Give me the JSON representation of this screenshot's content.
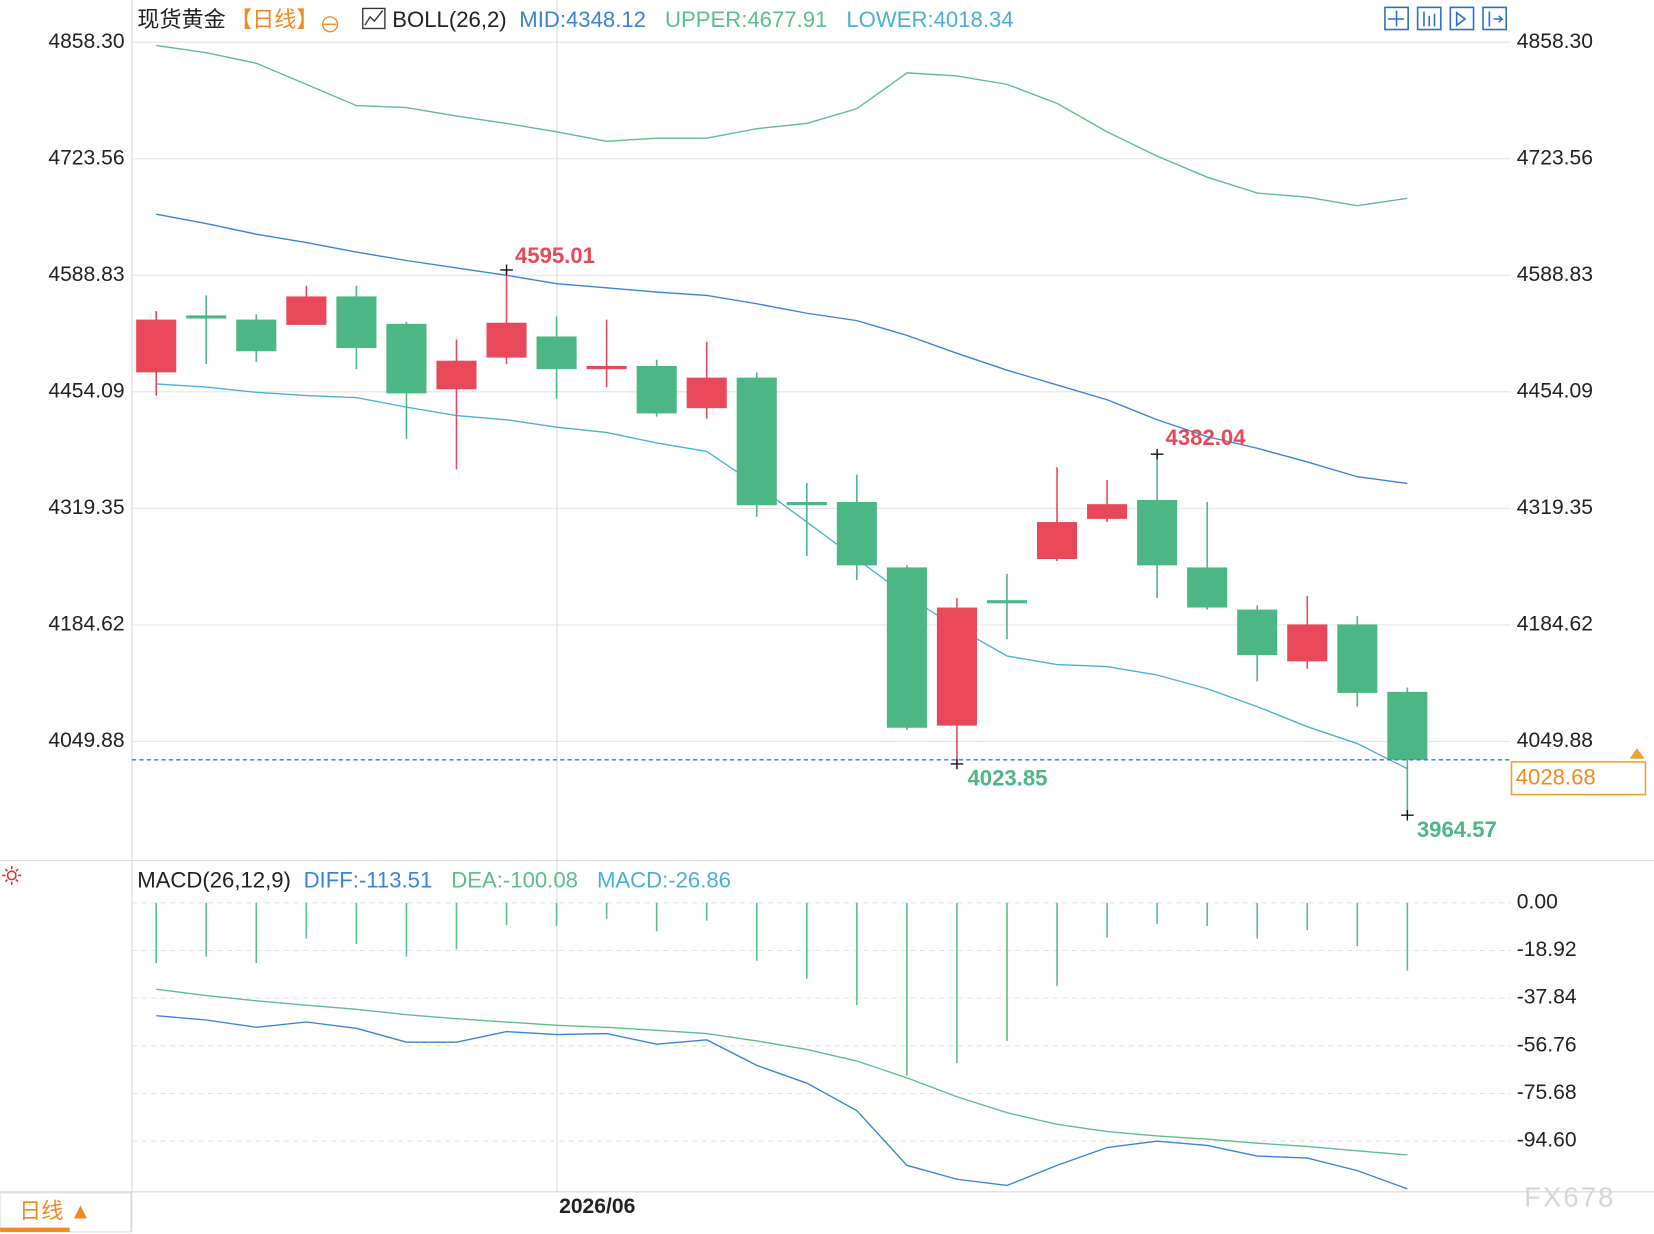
{
  "chart_data": [
    {
      "type": "candlestick",
      "title": "现货黄金",
      "period": "【日线】",
      "indicator": "BOLL(26,2)",
      "categories": [
        null,
        null,
        null,
        null,
        null,
        null,
        null,
        null,
        "2026/06",
        null,
        null,
        null,
        null,
        null,
        null,
        null,
        null,
        null,
        null,
        null,
        null,
        null,
        null,
        null,
        null,
        null
      ],
      "open": [
        4476.6,
        4542.5,
        4537.6,
        4531.5,
        4564.4,
        4532.7,
        4457.1,
        4493.7,
        4518.1,
        4480.3,
        4484.0,
        4435.2,
        4470.5,
        4326.7,
        4326.7,
        4251.1,
        4068.2,
        4213.2,
        4260.8,
        4307.2,
        4329.1,
        4251.1,
        4202.3,
        4142.5,
        4185.2,
        4107.2
      ],
      "high": [
        4547.4,
        4565.6,
        4543.7,
        4576.6,
        4576.6,
        4535.2,
        4514.4,
        4595.01,
        4541.3,
        4537.6,
        4491.3,
        4512.0,
        4476.6,
        4348.6,
        4358.4,
        4253.5,
        4215.7,
        4243.7,
        4366.9,
        4352.3,
        4382.04,
        4326.7,
        4207.2,
        4218.1,
        4195.0,
        4112.2
      ],
      "low": [
        4449.8,
        4486.4,
        4488.8,
        4531.5,
        4480.3,
        4399.8,
        4364.5,
        4486.4,
        4446.2,
        4459.6,
        4425.4,
        4423.0,
        4309.6,
        4264.5,
        4236.5,
        4063.3,
        4023.85,
        4168.1,
        4258.4,
        4303.5,
        4215.7,
        4202.3,
        4119.4,
        4134.0,
        4090.1,
        3964.57
      ],
      "close": [
        4537.6,
        4538.8,
        4501.0,
        4564.4,
        4504.7,
        4452.3,
        4490.1,
        4534.0,
        4480.3,
        4484.0,
        4429.1,
        4470.5,
        4323.0,
        4323.0,
        4253.5,
        4065.7,
        4204.7,
        4209.6,
        4303.5,
        4324.2,
        4253.5,
        4204.7,
        4149.8,
        4185.2,
        4106.0,
        4028.68
      ],
      "up_color": "#e8495a",
      "down_color": "#4cb784",
      "series": [
        {
          "name": "MID:4348.12",
          "color": "#3a83d8",
          "values": [
            4659.5,
            4648.6,
            4636.4,
            4626.6,
            4615.7,
            4605.9,
            4597.4,
            4588.9,
            4579.1,
            4574.3,
            4569.4,
            4565.6,
            4555.9,
            4544.9,
            4536.4,
            4519.3,
            4498.6,
            4479.1,
            4462.0,
            4444.9,
            4421.8,
            4402.3,
            4388.8,
            4373.0,
            4355.9,
            4348.12
          ]
        },
        {
          "name": "UPPER:4677.91",
          "color": "#5cbe8a",
          "values": [
            4854.6,
            4846.1,
            4833.9,
            4809.5,
            4785.1,
            4782.7,
            4773.0,
            4764.4,
            4754.7,
            4743.7,
            4747.3,
            4747.3,
            4758.3,
            4764.4,
            4781.5,
            4822.9,
            4819.3,
            4809.5,
            4787.6,
            4754.7,
            4726.6,
            4702.2,
            4683.9,
            4679.1,
            4669.3,
            4677.91
          ]
        },
        {
          "name": "LOWER:4018.34",
          "color": "#4bb0d8",
          "values": [
            4463.2,
            4459.6,
            4453.5,
            4449.8,
            4447.4,
            4436.4,
            4426.7,
            4421.8,
            4413.3,
            4407.2,
            4395.0,
            4385.2,
            4346.2,
            4303.5,
            4260.8,
            4218.1,
            4181.6,
            4148.6,
            4138.8,
            4136.4,
            4126.7,
            4110.8,
            4090.1,
            4066.9,
            4047.4,
            4018.34
          ]
        }
      ],
      "ylim": [
        3913.3,
        4907.1
      ],
      "yticks": [
        {
          "value": 4858.3,
          "label": "4858.30"
        },
        4723.56,
        4588.83,
        4454.09,
        4319.35,
        4184.62,
        4049.88
      ],
      "grid": true
    },
    {
      "type": "macd",
      "indicator": "MACD(26,12,9)",
      "series": [
        {
          "name": "DIFF:-113.51",
          "color": "#3a83d8",
          "type": "line",
          "values": [
            -44.8,
            -46.5,
            -49.4,
            -47.3,
            -49.8,
            -55.3,
            -55.3,
            -51.1,
            -52.3,
            -51.9,
            -56.1,
            -54.4,
            -64.5,
            -71.6,
            -82.5,
            -104.2,
            -109.7,
            -112.2,
            -104.2,
            -97.1,
            -94.6,
            -96.3,
            -100.5,
            -101.3,
            -106.3,
            -113.51
          ]
        },
        {
          "name": "DEA:-100.08",
          "color": "#5cbe8a",
          "type": "line",
          "values": [
            -34.3,
            -36.8,
            -38.9,
            -40.6,
            -42.3,
            -44.4,
            -46.0,
            -47.3,
            -48.6,
            -49.4,
            -50.6,
            -51.9,
            -54.8,
            -58.2,
            -62.8,
            -69.5,
            -77.0,
            -83.3,
            -87.9,
            -90.8,
            -92.5,
            -93.8,
            -95.4,
            -96.7,
            -98.4,
            -100.08
          ]
        },
        {
          "name": "MACD:-26.86",
          "color": "#4bb0d8",
          "type": "bar",
          "up_color": "#e8495a",
          "down_color": "#5cbe8a",
          "values": [
            -23.9,
            -21.3,
            -23.9,
            -14.2,
            -16.3,
            -21.3,
            -18.4,
            -8.8,
            -9.2,
            -6.3,
            -11.3,
            -7.1,
            -23.0,
            -30.1,
            -40.6,
            -68.6,
            -63.6,
            -54.8,
            -33.1,
            -13.8,
            -8.4,
            -9.2,
            -14.2,
            -10.9,
            -17.2,
            -26.86
          ]
        }
      ],
      "ylim": [
        -114.7,
        15.9
      ],
      "yticks": [
        {
          "value": 0,
          "label": "0.00"
        },
        -18.92,
        -37.84,
        -56.76,
        -75.68,
        {
          "value": -94.6,
          "label": "-94.60"
        }
      ],
      "grid": true
    }
  ],
  "period_tab": "日线 ▲",
  "watermark": "FX678"
}
